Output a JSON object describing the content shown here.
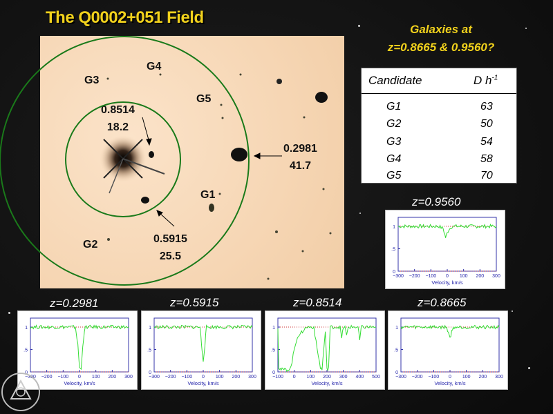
{
  "title": "The Q0002+051 Field",
  "header": {
    "line1": "Galaxies at",
    "line2": "z=0.8665 & 0.9560?"
  },
  "field_labels": {
    "g3": "G3",
    "g4": "G4",
    "g5": "G5",
    "g1": "G1",
    "g2": "G2",
    "abs1_z": "0.8514",
    "abs1_d": "18.2",
    "abs2_z": "0.2981",
    "abs2_d": "41.7",
    "abs3_z": "0.5915",
    "abs3_d": "25.5"
  },
  "table": {
    "col1": "Candidate",
    "col2_main": "D h",
    "col2_sup": "-1",
    "rows": [
      {
        "candidate": "G1",
        "d": "63"
      },
      {
        "candidate": "G2",
        "d": "50"
      },
      {
        "candidate": "G3",
        "d": "54"
      },
      {
        "candidate": "G4",
        "d": "58"
      },
      {
        "candidate": "G5",
        "d": "70"
      }
    ]
  },
  "panel_labels": {
    "z09560": "z=0.9560",
    "z02981": "z=0.2981",
    "z05915": "z=0.5915",
    "z08514": "z=0.8514",
    "z08665": "z=0.8665"
  },
  "colors": {
    "title": "#f2d21c",
    "spectrum": "#33dd33",
    "circle": "#1a7a1a",
    "ref_line": "#cc3333"
  },
  "chart_data": [
    {
      "type": "line",
      "title": "z=0.9560",
      "xlabel": "Velocity, km/s",
      "ylabel": "",
      "xlim": [
        -300,
        300
      ],
      "ylim": [
        0,
        1.2
      ],
      "xticks": [
        -300,
        -200,
        -100,
        0,
        100,
        200,
        300
      ],
      "yticks": [
        0,
        0.5,
        1
      ],
      "ytick_labels": [
        "0",
        ".5",
        "1"
      ],
      "series": [
        {
          "x": [
            -300,
            -50,
            -25,
            -10,
            0,
            10,
            30,
            300
          ],
          "y": [
            1.0,
            1.0,
            0.95,
            0.75,
            0.85,
            0.93,
            1.0,
            1.0
          ]
        }
      ]
    },
    {
      "type": "line",
      "title": "z=0.2981",
      "xlabel": "Velocity, km/s",
      "ylabel": "",
      "xlim": [
        -300,
        300
      ],
      "ylim": [
        0,
        1.2
      ],
      "xticks": [
        -300,
        -200,
        -100,
        0,
        100,
        200,
        300
      ],
      "yticks": [
        0,
        0.5,
        1
      ],
      "ytick_labels": [
        "0",
        ".5",
        "1"
      ],
      "series": [
        {
          "x": [
            -300,
            -25,
            -10,
            0,
            10,
            20,
            35,
            300
          ],
          "y": [
            1.0,
            1.0,
            0.6,
            0.1,
            0.05,
            0.6,
            1.0,
            1.0
          ]
        }
      ]
    },
    {
      "type": "line",
      "title": "z=0.5915",
      "xlabel": "Velocity, km/s",
      "ylabel": "",
      "xlim": [
        -300,
        300
      ],
      "ylim": [
        0,
        1.2
      ],
      "xticks": [
        -300,
        -200,
        -100,
        0,
        100,
        200,
        300
      ],
      "yticks": [
        0,
        0.5,
        1
      ],
      "ytick_labels": [
        "0",
        ".5",
        "1"
      ],
      "series": [
        {
          "x": [
            -300,
            -20,
            -10,
            0,
            10,
            20,
            300
          ],
          "y": [
            1.0,
            1.0,
            0.6,
            0.25,
            0.6,
            1.0,
            1.0
          ]
        }
      ]
    },
    {
      "type": "line",
      "title": "z=0.8514",
      "xlabel": "Velocity, km/s",
      "ylabel": "",
      "xlim": [
        -100,
        500
      ],
      "ylim": [
        0,
        1.2
      ],
      "xticks": [
        -100,
        0,
        100,
        200,
        300,
        400,
        500
      ],
      "yticks": [
        0,
        0.5,
        1
      ],
      "ytick_labels": [
        "0",
        ".5",
        "1"
      ],
      "series": [
        {
          "x": [
            -100,
            -95,
            -80,
            -40,
            -20,
            0,
            20,
            40,
            50,
            60,
            80,
            100,
            120,
            140,
            160,
            170,
            180,
            190,
            200,
            210,
            220,
            280,
            290,
            300,
            310,
            320,
            330,
            380,
            390,
            400,
            410,
            420,
            500
          ],
          "y": [
            1.0,
            0.1,
            0.05,
            0.05,
            0.1,
            0.5,
            0.8,
            0.85,
            0.9,
            0.95,
            1.0,
            1.0,
            1.0,
            0.5,
            0.1,
            0.05,
            0.5,
            0.9,
            0.05,
            0.1,
            1.0,
            1.0,
            0.75,
            1.0,
            1.0,
            0.8,
            1.0,
            1.0,
            1.0,
            0.7,
            1.0,
            1.0,
            1.0
          ]
        }
      ]
    },
    {
      "type": "line",
      "title": "z=0.8665",
      "xlabel": "Velocity, km/s",
      "ylabel": "",
      "xlim": [
        -300,
        300
      ],
      "ylim": [
        0,
        1.2
      ],
      "xticks": [
        -300,
        -200,
        -100,
        0,
        100,
        200,
        300
      ],
      "yticks": [
        0,
        0.5,
        1
      ],
      "ytick_labels": [
        "0",
        ".5",
        "1"
      ],
      "series": [
        {
          "x": [
            -300,
            -25,
            -10,
            0,
            10,
            25,
            300
          ],
          "y": [
            1.0,
            1.0,
            0.9,
            0.75,
            0.9,
            1.0,
            1.0
          ]
        }
      ]
    }
  ]
}
